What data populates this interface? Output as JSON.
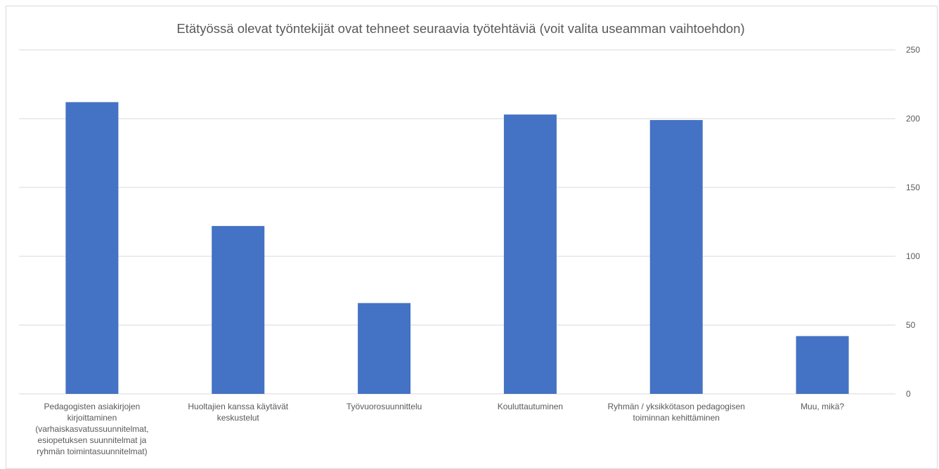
{
  "chart_data": {
    "type": "bar",
    "title": "Etätyössä olevat työntekijät ovat tehneet seuraavia työtehtäviä (voit valita useamman vaihtoehdon)",
    "xlabel": "",
    "ylabel": "",
    "ylim": [
      0,
      250
    ],
    "yticks": [
      0,
      50,
      100,
      150,
      200,
      250
    ],
    "y_axis_side": "right",
    "grid": true,
    "legend": "none",
    "bar_color": "#4472C4",
    "categories": [
      [
        "Pedagogisten asiakirjojen",
        "kirjoittaminen",
        "(varhaiskasvatussuunnitelmat,",
        "esiopetuksen suunnitelmat ja",
        "ryhmän toimintasuunnitelmat)"
      ],
      [
        "Huoltajien kanssa käytävät",
        "keskustelut"
      ],
      [
        "Työvuorosuunnittelu"
      ],
      [
        "Kouluttautuminen"
      ],
      [
        "Ryhmän / yksikkötason pedagogisen",
        "toiminnan kehittäminen"
      ],
      [
        "Muu, mikä?"
      ]
    ],
    "values": [
      212,
      122,
      66,
      203,
      199,
      42
    ]
  }
}
